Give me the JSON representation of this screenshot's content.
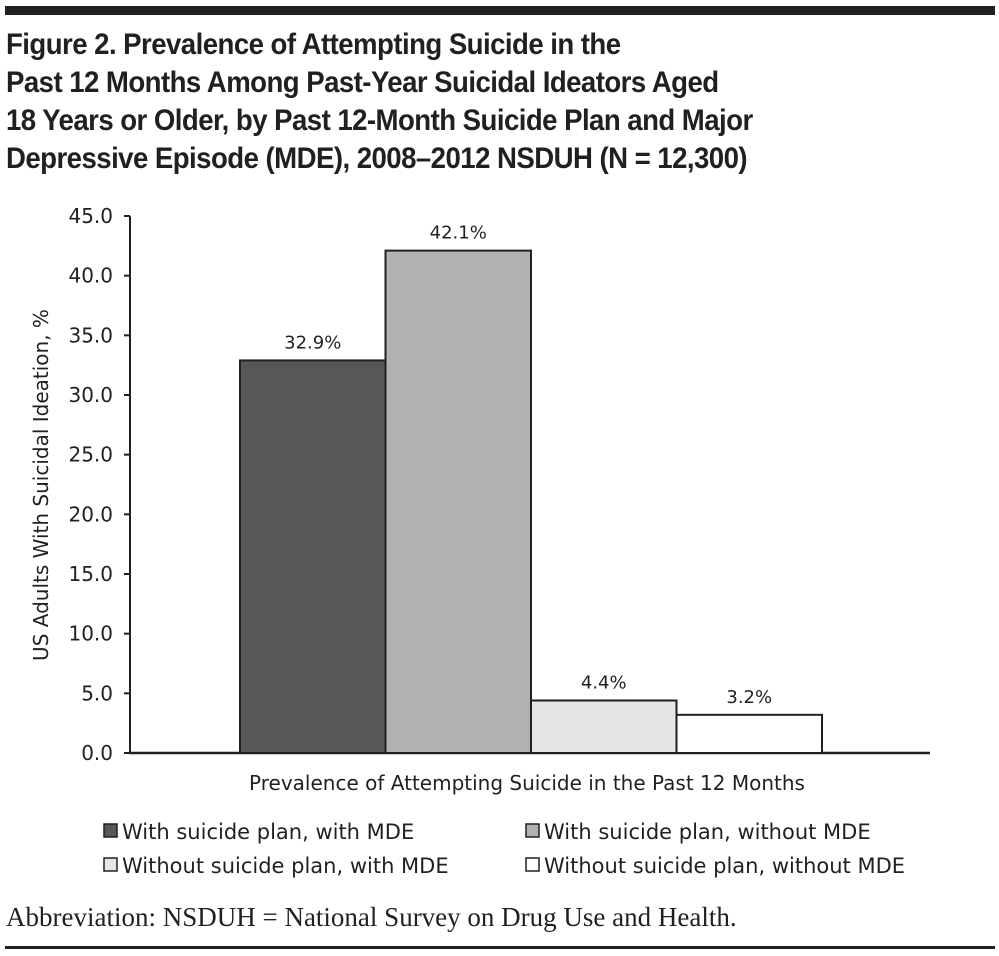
{
  "figure": {
    "title": "Figure 2. Prevalence of Attempting Suicide in the\nPast 12 Months Among Past-Year Suicidal Ideators Aged\n18 Years or Older, by Past 12-Month Suicide Plan and Major\nDepressive Episode (MDE), 2008–2012 NSDUH (N = 12,300)",
    "footnote": "Abbreviation: NSDUH = National Survey on Drug Use and Health."
  },
  "chart_data": {
    "type": "bar",
    "title": "Figure 2. Prevalence of Attempting Suicide in the Past 12 Months Among Past-Year Suicidal Ideators Aged 18 Years or Older, by Past 12-Month Suicide Plan and Major Depressive Episode (MDE), 2008–2012 NSDUH (N = 12,300)",
    "xlabel": "Prevalence of Attempting Suicide in the Past 12 Months",
    "ylabel": "US Adults With Suicidal Ideation, %",
    "ylim": [
      0,
      45
    ],
    "yticks": [
      "0.0",
      "5.0",
      "10.0",
      "15.0",
      "20.0",
      "25.0",
      "30.0",
      "35.0",
      "40.0",
      "45.0"
    ],
    "grid": false,
    "legend_position": "bottom",
    "categories": [
      "Prevalence of Attempting Suicide in the Past 12 Months"
    ],
    "series": [
      {
        "name": "With suicide plan, with MDE",
        "values": [
          32.9
        ],
        "label": "32.9%",
        "color": "#575757"
      },
      {
        "name": "With suicide plan, without MDE",
        "values": [
          42.1
        ],
        "label": "42.1%",
        "color": "#b1b1b1"
      },
      {
        "name": "Without suicide plan, with MDE",
        "values": [
          4.4
        ],
        "label": "4.4%",
        "color": "#e6e6e6"
      },
      {
        "name": "Without suicide plan, without MDE",
        "values": [
          3.2
        ],
        "label": "3.2%",
        "color": "#ffffff"
      }
    ]
  }
}
